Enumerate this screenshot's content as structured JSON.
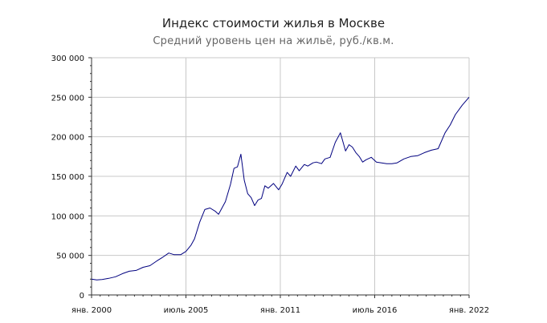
{
  "chart_data": {
    "type": "line",
    "title": "Индекс стоимости жилья в Москве",
    "subtitle": "Средний уровень цен на жильё, руб./кв.м.",
    "xlabel": "",
    "ylabel": "",
    "ylim": [
      0,
      300000
    ],
    "y_ticks": [
      {
        "value": 0,
        "label": "0"
      },
      {
        "value": 50000,
        "label": "50 000"
      },
      {
        "value": 100000,
        "label": "100 000"
      },
      {
        "value": 150000,
        "label": "150 000"
      },
      {
        "value": 200000,
        "label": "200 000"
      },
      {
        "value": 250000,
        "label": "250 000"
      },
      {
        "value": 300000,
        "label": "300 000"
      }
    ],
    "x_ticks": [
      {
        "value": 2000.0,
        "label": "янв. 2000"
      },
      {
        "value": 2005.5,
        "label": "июль 2005"
      },
      {
        "value": 2011.0,
        "label": "янв. 2011"
      },
      {
        "value": 2016.5,
        "label": "июль 2016"
      },
      {
        "value": 2022.0,
        "label": "янв. 2022"
      }
    ],
    "xlim": [
      2000.0,
      2022.0
    ],
    "grid": true,
    "line_color": "#00007f",
    "series": [
      {
        "x": [
          2000.0,
          2000.3,
          2000.6,
          2001.0,
          2001.4,
          2001.8,
          2002.2,
          2002.6,
          2003.0,
          2003.4,
          2003.8,
          2004.1,
          2004.5,
          2004.8,
          2005.2,
          2005.5,
          2005.8,
          2006.0,
          2006.3,
          2006.6,
          2006.9,
          2007.2,
          2007.4,
          2007.8,
          2008.1,
          2008.3,
          2008.5,
          2008.7,
          2008.9,
          2009.1,
          2009.3,
          2009.5,
          2009.7,
          2009.9,
          2010.1,
          2010.3,
          2010.6,
          2010.9,
          2011.1,
          2011.4,
          2011.6,
          2011.9,
          2012.1,
          2012.4,
          2012.6,
          2012.9,
          2013.1,
          2013.4,
          2013.6,
          2013.9,
          2014.2,
          2014.5,
          2014.8,
          2015.0,
          2015.2,
          2015.4,
          2015.6,
          2015.8,
          2016.0,
          2016.3,
          2016.6,
          2016.9,
          2017.2,
          2017.5,
          2017.8,
          2018.2,
          2018.6,
          2019.0,
          2019.4,
          2019.8,
          2020.2,
          2020.6,
          2020.9,
          2021.2,
          2021.6,
          2022.0
        ],
        "y": [
          20000,
          19000,
          19500,
          21000,
          23000,
          27000,
          30000,
          31000,
          35000,
          37000,
          43000,
          47000,
          53000,
          51000,
          51000,
          55000,
          63000,
          71000,
          92000,
          108000,
          110000,
          106000,
          102000,
          118000,
          140000,
          160000,
          162000,
          178000,
          145000,
          128000,
          123000,
          113000,
          120000,
          122000,
          138000,
          135000,
          141000,
          133000,
          140000,
          155000,
          150000,
          163000,
          157000,
          165000,
          163000,
          167000,
          168000,
          166000,
          172000,
          174000,
          193000,
          205000,
          182000,
          190000,
          187000,
          180000,
          175000,
          168000,
          171000,
          174000,
          168000,
          167000,
          166000,
          166000,
          167000,
          172000,
          175000,
          176000,
          180000,
          183000,
          185000,
          205000,
          215000,
          228000,
          240000,
          250000
        ]
      }
    ]
  }
}
